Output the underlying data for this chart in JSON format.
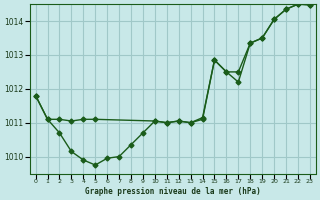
{
  "title": "Graphe pression niveau de la mer (hPa)",
  "background_color": "#c8e8e8",
  "grid_color": "#a0c8c8",
  "line_color": "#1a5c1a",
  "marker_color": "#1a5c1a",
  "xlim": [
    -0.5,
    23.5
  ],
  "ylim": [
    1009.5,
    1014.5
  ],
  "yticks": [
    1010,
    1011,
    1012,
    1013,
    1014
  ],
  "xtick_labels": [
    "0",
    "1",
    "2",
    "3",
    "4",
    "5",
    "6",
    "7",
    "8",
    "9",
    "10",
    "11",
    "12",
    "13",
    "14",
    "15",
    "16",
    "17",
    "18",
    "19",
    "20",
    "21",
    "22",
    "23"
  ],
  "line1_x": [
    0,
    1,
    2,
    3,
    4,
    5,
    6,
    7,
    8,
    9,
    10,
    11,
    12,
    13,
    14,
    15,
    16,
    17,
    18,
    19,
    20,
    21,
    22,
    23
  ],
  "line1_y": [
    1011.8,
    1011.1,
    1010.7,
    1010.15,
    1009.9,
    1009.75,
    1009.95,
    1010.0,
    1010.35,
    1010.7,
    1011.05,
    1011.0,
    1011.05,
    1011.0,
    1011.15,
    1012.85,
    1012.5,
    1012.2,
    1013.35,
    1013.5,
    1014.05,
    1014.35,
    1014.5,
    1014.48
  ],
  "line2_x": [
    0,
    1,
    2,
    3,
    4,
    5,
    10,
    11,
    12,
    13,
    14,
    15,
    16,
    17,
    18,
    19,
    20,
    21,
    22,
    23
  ],
  "line2_y": [
    1011.8,
    1011.1,
    1011.1,
    1011.05,
    1011.1,
    1011.1,
    1011.05,
    1011.0,
    1011.05,
    1011.0,
    1011.1,
    1012.85,
    1012.5,
    1012.5,
    1013.35,
    1013.5,
    1014.05,
    1014.35,
    1014.5,
    1014.48
  ]
}
